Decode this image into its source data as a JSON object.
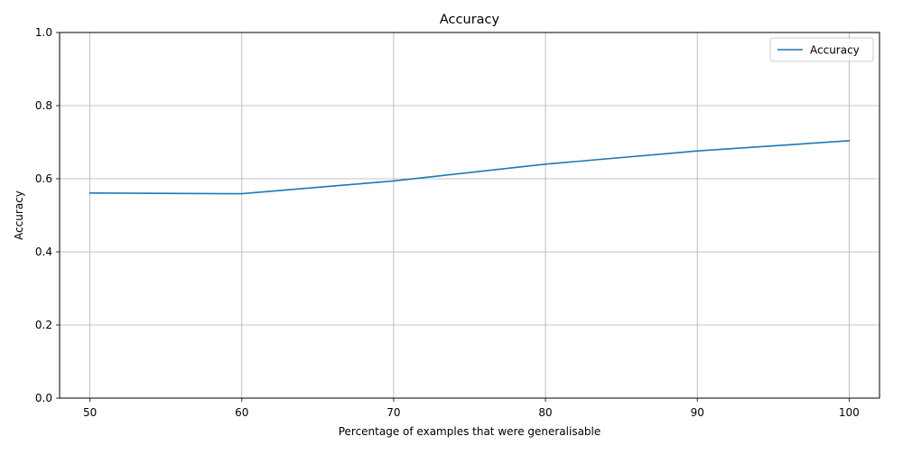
{
  "chart_data": {
    "type": "line",
    "title": "Accuracy",
    "xlabel": "Percentage of examples that were generalisable",
    "ylabel": "Accuracy",
    "x": [
      50,
      60,
      70,
      80,
      90,
      100
    ],
    "series": [
      {
        "name": "Accuracy",
        "values": [
          0.561,
          0.559,
          0.594,
          0.64,
          0.676,
          0.704
        ],
        "color": "#1f77b4"
      }
    ],
    "xlim": [
      48,
      102
    ],
    "ylim": [
      0.0,
      1.0
    ],
    "xticks": [
      50,
      60,
      70,
      80,
      90,
      100
    ],
    "yticks": [
      0.0,
      0.2,
      0.4,
      0.6,
      0.8,
      1.0
    ],
    "xtick_labels": [
      "50",
      "60",
      "70",
      "80",
      "90",
      "100"
    ],
    "ytick_labels": [
      "0.0",
      "0.2",
      "0.4",
      "0.6",
      "0.8",
      "1.0"
    ],
    "grid": true,
    "grid_color": "#b0b0b0",
    "legend_position": "top-right"
  }
}
